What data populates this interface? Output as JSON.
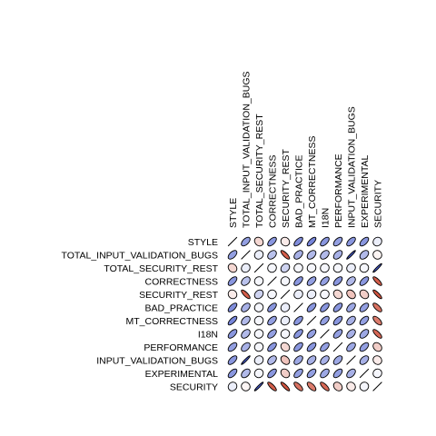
{
  "chart_data": {
    "type": "heatmap",
    "style": "correlation-ellipse-matrix",
    "title": "",
    "variables": [
      "STYLE",
      "TOTAL_INPUT_VALIDATION_BUGS",
      "TOTAL_SECURITY_REST",
      "CORRECTNESS",
      "SECURITY_REST",
      "BAD_PRACTICE",
      "MT_CORRECTNESS",
      "I18N",
      "PERFORMANCE",
      "INPUT_VALIDATION_BUGS",
      "EXPERIMENTAL",
      "SECURITY"
    ],
    "matrix": [
      [
        1.0,
        0.55,
        -0.2,
        0.6,
        -0.1,
        0.65,
        0.7,
        0.6,
        0.55,
        0.6,
        0.6,
        0.1
      ],
      [
        0.55,
        1.0,
        0.1,
        0.35,
        -0.8,
        0.45,
        0.4,
        0.4,
        0.45,
        0.95,
        0.4,
        -0.05
      ],
      [
        -0.2,
        0.1,
        1.0,
        0.05,
        0.25,
        0.05,
        0.05,
        0.05,
        0.05,
        0.1,
        0.05,
        0.95
      ],
      [
        0.6,
        0.35,
        0.05,
        1.0,
        0.05,
        0.6,
        0.55,
        0.55,
        0.6,
        0.4,
        0.6,
        -0.8
      ],
      [
        -0.1,
        -0.8,
        0.25,
        0.05,
        1.0,
        0.1,
        0.1,
        0.05,
        -0.2,
        -0.3,
        -0.25,
        -0.85
      ],
      [
        0.65,
        0.45,
        0.05,
        0.6,
        0.1,
        1.0,
        0.6,
        0.6,
        0.6,
        0.5,
        0.55,
        -0.7
      ],
      [
        0.7,
        0.4,
        0.05,
        0.55,
        0.1,
        0.6,
        1.0,
        0.55,
        0.6,
        0.45,
        0.55,
        -0.65
      ],
      [
        0.6,
        0.4,
        0.05,
        0.55,
        0.05,
        0.6,
        0.55,
        1.0,
        0.55,
        0.45,
        0.5,
        -0.75
      ],
      [
        0.55,
        0.45,
        0.05,
        0.6,
        -0.2,
        0.6,
        0.6,
        0.55,
        1.0,
        0.5,
        0.55,
        -0.25
      ],
      [
        0.6,
        0.95,
        0.1,
        0.4,
        -0.3,
        0.5,
        0.45,
        0.45,
        0.5,
        1.0,
        0.45,
        -0.1
      ],
      [
        0.6,
        0.4,
        0.05,
        0.6,
        -0.25,
        0.55,
        0.55,
        0.5,
        0.55,
        0.45,
        1.0,
        0.05
      ],
      [
        0.1,
        -0.05,
        0.95,
        -0.8,
        -0.85,
        -0.7,
        -0.65,
        -0.75,
        -0.25,
        -0.1,
        0.05,
        1.0
      ]
    ],
    "value_range": [
      -1,
      1
    ],
    "colors": {
      "positive": "#3b50c8",
      "negative": "#c8361e",
      "neutral": "#ffffff",
      "outline": "#000000"
    },
    "legend": "none",
    "grid": false
  }
}
